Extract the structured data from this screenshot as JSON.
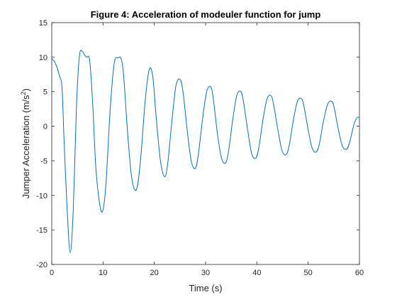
{
  "chart_data": {
    "type": "line",
    "title": "Figure 4: Acceleration of modeuler function for jump",
    "xlabel": "Time (s)",
    "ylabel_main": "Jumper Acceleration (m/s",
    "ylabel_sup": "2",
    "ylabel_end": ")",
    "xlim": [
      0,
      60
    ],
    "ylim": [
      -20,
      15
    ],
    "xticks": [
      0,
      10,
      20,
      30,
      40,
      50,
      60
    ],
    "yticks": [
      -20,
      -15,
      -10,
      -5,
      0,
      5,
      10,
      15
    ],
    "grid": false,
    "line_color": "#0072BD",
    "series": [
      {
        "x": [
          0,
          0.5,
          1.0,
          1.5,
          2.0,
          2.4,
          3.0,
          3.6,
          4.2,
          4.8,
          5.4,
          6.0,
          6.4,
          6.8,
          7.4,
          8.0,
          8.6,
          9.4,
          10.0,
          10.6,
          11.4,
          12.2,
          13.0,
          13.5,
          14.0,
          14.8,
          15.6,
          16.5,
          17.3,
          18.2,
          19.0,
          19.7,
          20.4,
          21.2,
          22.0,
          22.6,
          23.4,
          24.2,
          25.0,
          25.6,
          26.4,
          27.2,
          28.0,
          28.6,
          29.4,
          30.2,
          31.0,
          31.5,
          32.3,
          33.1,
          33.9,
          34.5,
          35.3,
          36.1,
          36.9,
          37.4,
          38.2,
          39.0,
          39.8,
          40.4,
          41.2,
          42.0,
          42.8,
          43.3,
          44.1,
          44.9,
          45.7,
          46.3,
          47.1,
          47.9,
          48.7,
          49.2,
          50.0,
          50.8,
          51.6,
          52.2,
          53.0,
          53.8,
          54.6,
          55.1,
          55.9,
          56.7,
          57.5,
          58.1,
          58.9,
          59.5,
          60.0
        ],
        "y": [
          9.8,
          9.4,
          8.6,
          7.3,
          5.6,
          -2.0,
          -12.0,
          -18.3,
          -12.0,
          2.5,
          10.2,
          10.8,
          10.3,
          10.0,
          9.5,
          3.0,
          -6.0,
          -11.5,
          -12.1,
          -8.0,
          2.5,
          9.2,
          9.9,
          9.8,
          7.5,
          -1.0,
          -7.5,
          -9.2,
          -5.0,
          3.5,
          8.2,
          7.2,
          1.0,
          -5.0,
          -7.3,
          -5.5,
          0.5,
          5.8,
          6.8,
          5.0,
          -0.5,
          -5.0,
          -6.1,
          -4.0,
          1.0,
          5.0,
          5.7,
          4.0,
          -1.0,
          -4.6,
          -5.3,
          -3.5,
          1.0,
          4.5,
          5.0,
          3.5,
          -0.5,
          -4.0,
          -4.6,
          -3.0,
          1.0,
          4.0,
          4.4,
          3.0,
          -0.5,
          -3.5,
          -4.1,
          -2.8,
          0.8,
          3.6,
          4.0,
          2.8,
          -0.5,
          -3.2,
          -3.7,
          -2.5,
          0.8,
          3.2,
          3.6,
          2.6,
          -0.5,
          -2.9,
          -3.3,
          -2.3,
          0.2,
          1.2,
          1.3
        ]
      }
    ]
  }
}
